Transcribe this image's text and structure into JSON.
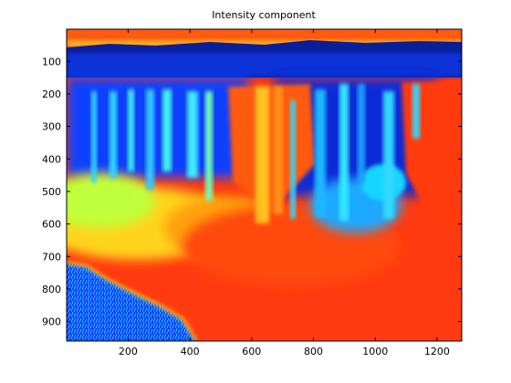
{
  "chart_data": {
    "type": "heatmap",
    "title": "Intensity component",
    "xlabel": "",
    "ylabel": "",
    "colormap": "jet",
    "xlim": [
      1,
      1280
    ],
    "ylim": [
      1,
      960
    ],
    "y_reversed": true,
    "x_ticks": [
      200,
      400,
      600,
      800,
      1000,
      1200
    ],
    "y_ticks": [
      100,
      200,
      300,
      400,
      500,
      600,
      700,
      800,
      900
    ],
    "grid": false,
    "legend": "none"
  }
}
